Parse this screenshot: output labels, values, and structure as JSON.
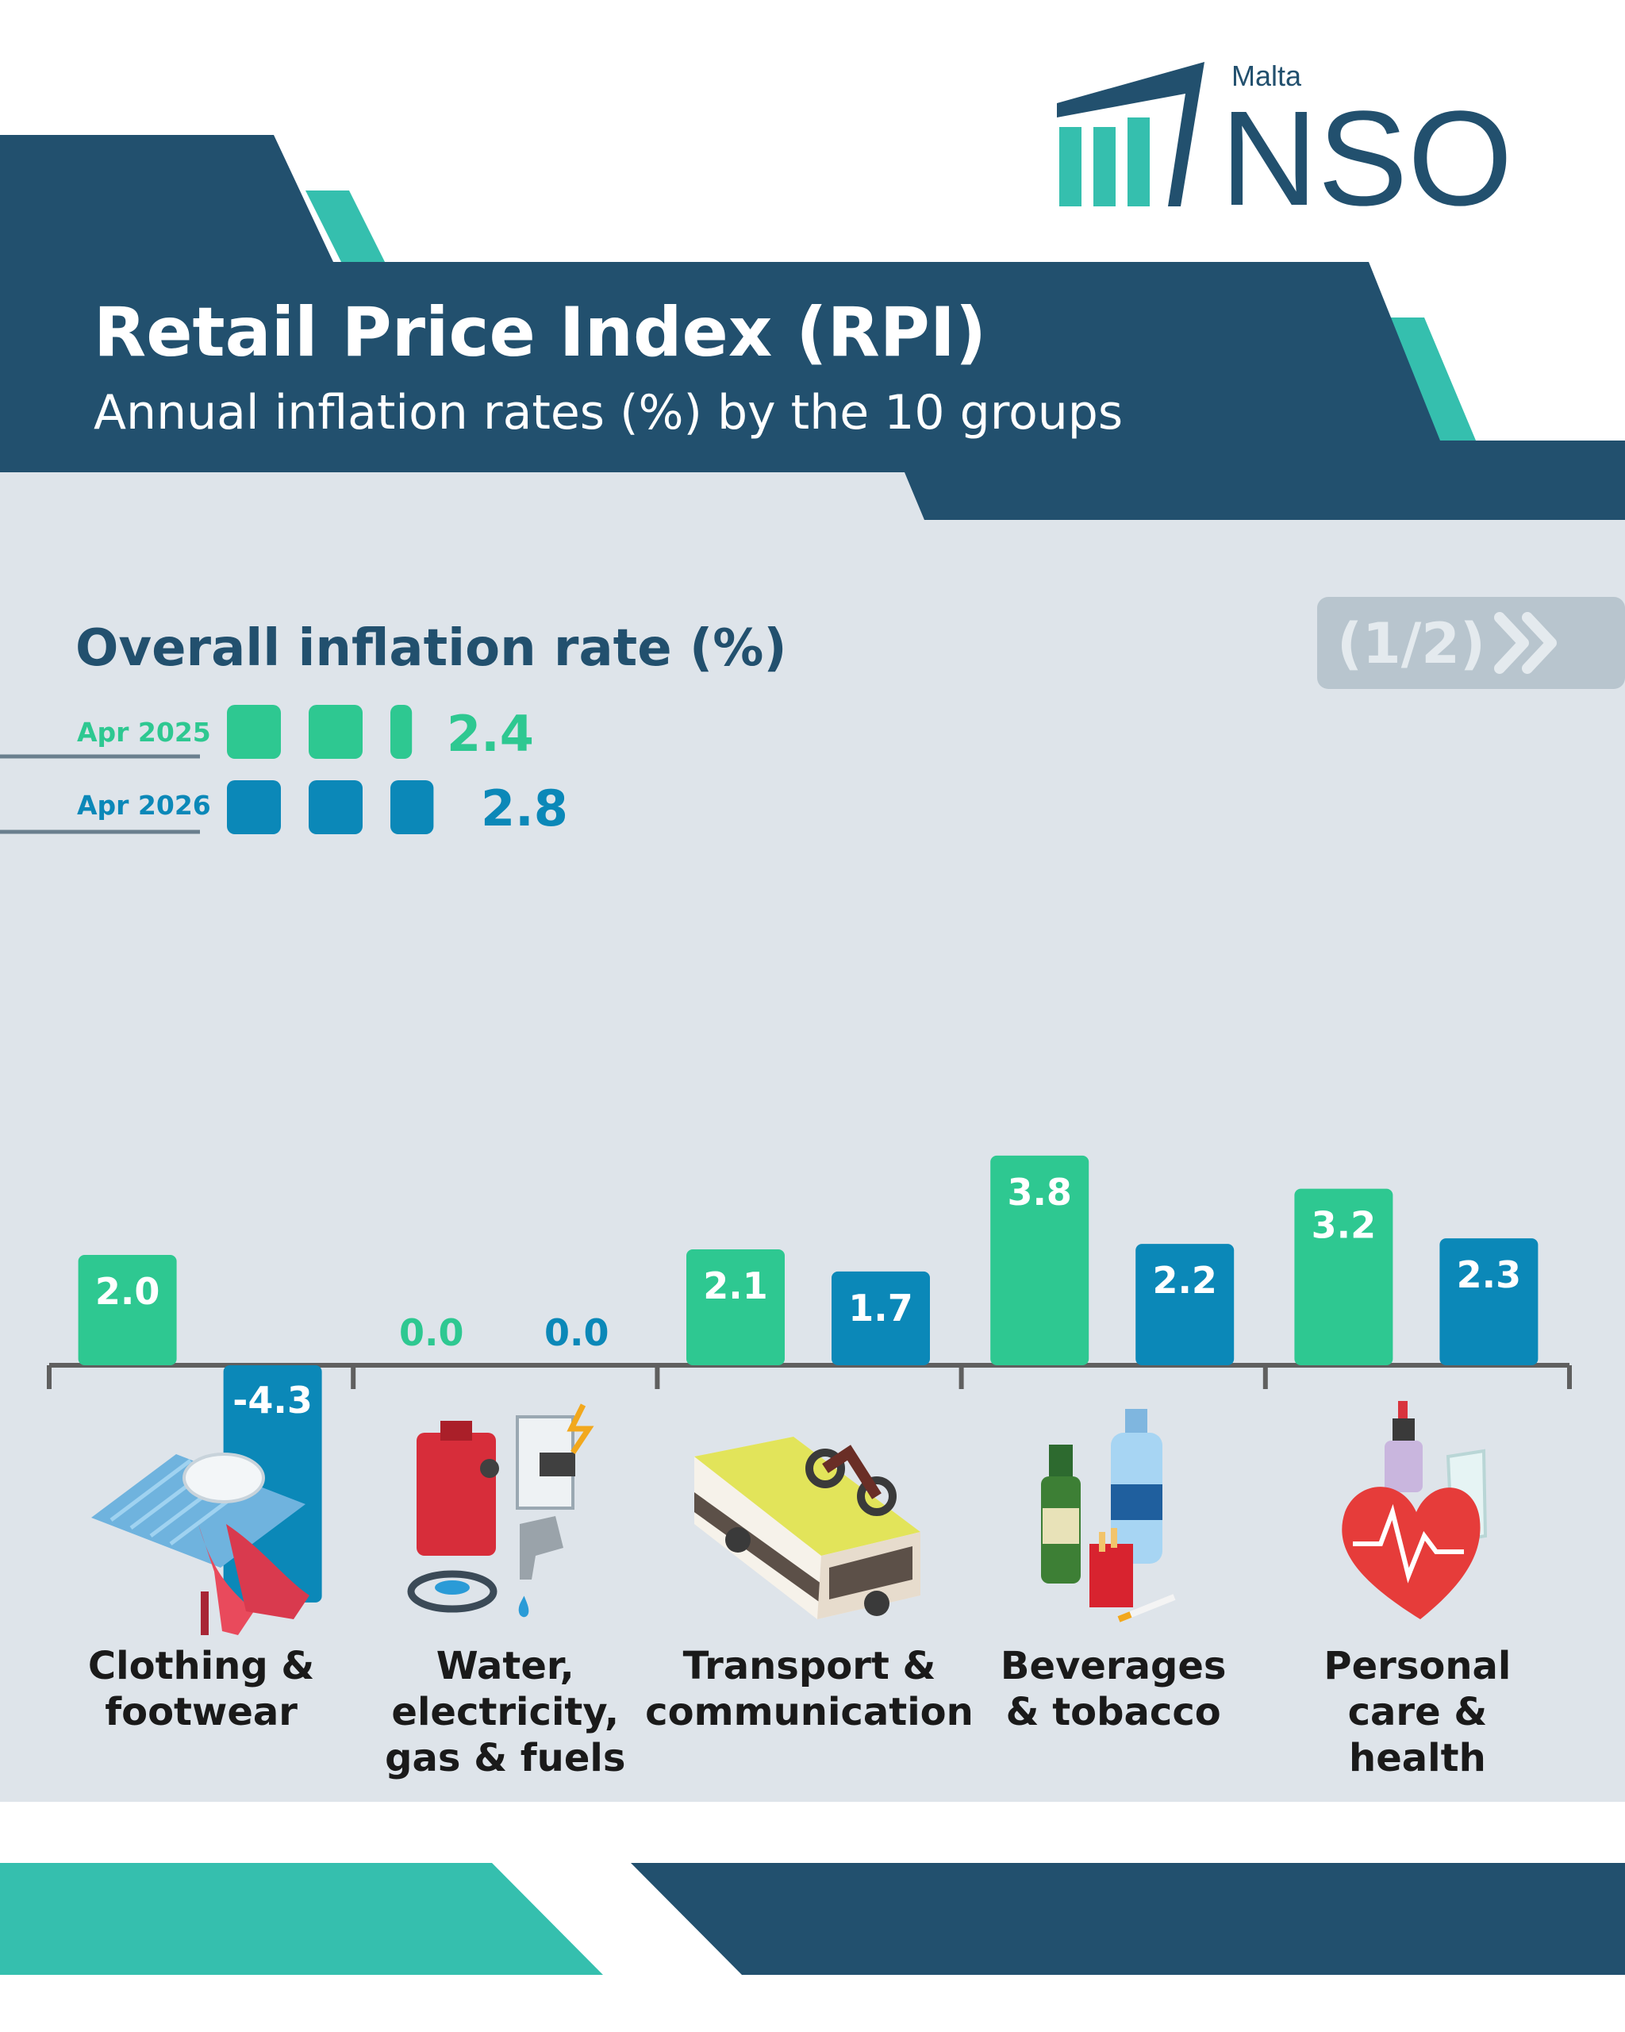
{
  "brand": {
    "country": "Malta",
    "name": "NSO"
  },
  "header": {
    "title": "Retail Price Index (RPI)",
    "subtitle": "Annual inflation rates (%) by the 10 groups"
  },
  "overall": {
    "title": "Overall inflation rate (%)",
    "rows": [
      {
        "label": "Apr 2025",
        "value": 2.4,
        "display": "2.4",
        "color": "#2ec891"
      },
      {
        "label": "Apr 2026",
        "value": 2.8,
        "display": "2.8",
        "color": "#0b88b8"
      }
    ]
  },
  "pager": {
    "label": "(1/2)",
    "icon": "double-chevron-right-icon"
  },
  "colors": {
    "navy": "#22506e",
    "teal": "#35bfae",
    "panel": "#dee4ea",
    "green": "#2ec891",
    "blue": "#0b88b8"
  },
  "chart_data": {
    "type": "bar",
    "categories": [
      "Clothing & footwear",
      "Water, electricity, gas & fuels",
      "Transport & communication",
      "Beverages & tobacco",
      "Personal care & health"
    ],
    "category_lines": [
      [
        "Clothing &",
        "footwear"
      ],
      [
        "Water,",
        "electricity,",
        "gas & fuels"
      ],
      [
        "Transport &",
        "communication"
      ],
      [
        "Beverages",
        "& tobacco"
      ],
      [
        "Personal",
        "care &",
        "health"
      ]
    ],
    "category_icons": [
      "shoes-and-clothing-icon",
      "utilities-icon",
      "bus-and-motorbike-icon",
      "bottles-and-cigarettes-icon",
      "heart-and-cosmetics-icon"
    ],
    "series": [
      {
        "name": "Apr 2025",
        "values": [
          2.0,
          0.0,
          2.1,
          3.8,
          3.2
        ],
        "color": "#2ec891"
      },
      {
        "name": "Apr 2026",
        "values": [
          -4.3,
          0.0,
          1.7,
          2.2,
          2.3
        ],
        "color": "#0b88b8"
      }
    ],
    "legend": "top-left"
  }
}
